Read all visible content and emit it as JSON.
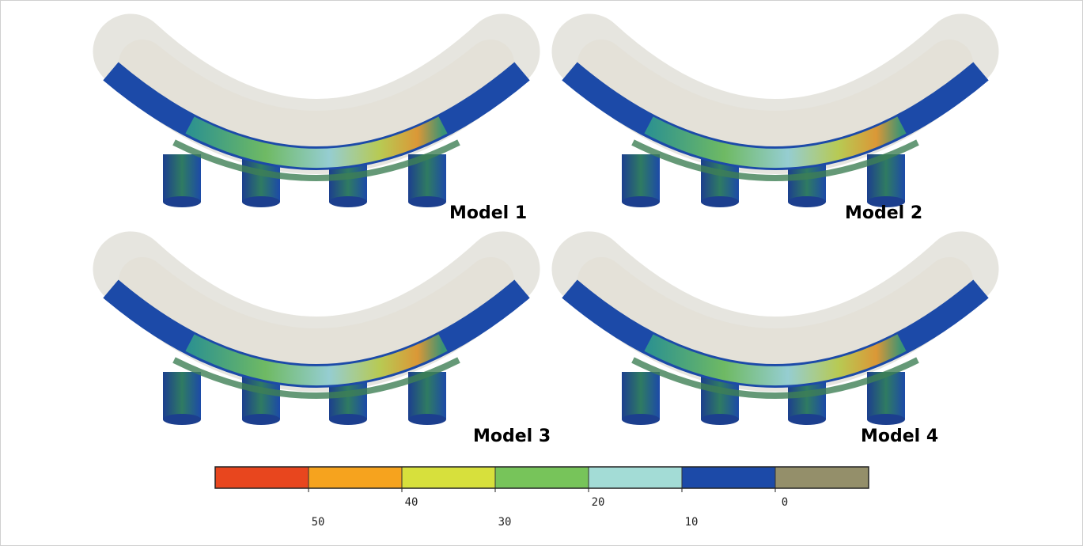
{
  "panels": [
    {
      "label": "Model 1"
    },
    {
      "label": "Model 2"
    },
    {
      "label": "Model 3"
    },
    {
      "label": "Model 4"
    }
  ],
  "colorbar": {
    "colors": [
      "#e8461e",
      "#f6a31e",
      "#d7e03c",
      "#77c45a",
      "#a3dcd6",
      "#1c4aa8",
      "#948f6a"
    ],
    "ticks": [
      50,
      40,
      30,
      20,
      10,
      0
    ]
  }
}
